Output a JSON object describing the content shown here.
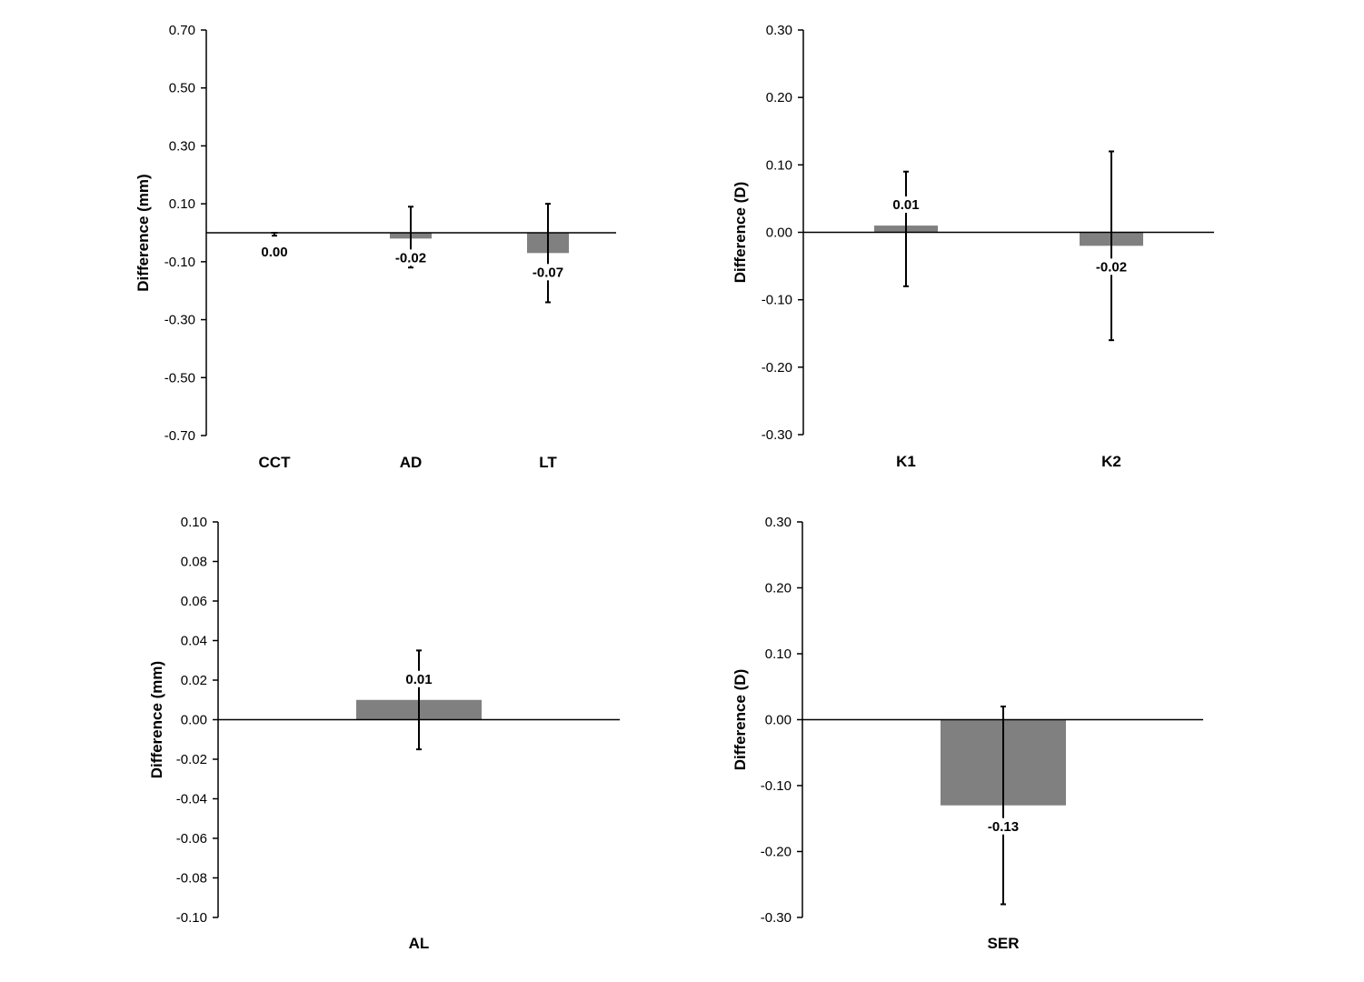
{
  "chart_data": [
    {
      "type": "bar",
      "categories": [
        "CCT",
        "AD",
        "LT"
      ],
      "values": [
        0.0,
        -0.02,
        -0.07
      ],
      "value_labels": [
        "0.00",
        "-0.02",
        "-0.07"
      ],
      "error_bars": [
        {
          "low": -0.01,
          "high": 0.0
        },
        {
          "low": -0.12,
          "high": 0.09
        },
        {
          "low": -0.24,
          "high": 0.1
        }
      ],
      "ylabel": "Difference (mm)",
      "ylim": [
        -0.7,
        0.7
      ],
      "yticks": [
        0.7,
        0.5,
        0.3,
        0.1,
        -0.1,
        -0.3,
        -0.5,
        -0.7
      ],
      "ytick_labels": [
        "0.70",
        "0.50",
        "0.30",
        "0.10",
        "-0.10",
        "-0.30",
        "-0.50",
        "-0.70"
      ],
      "bar_color": "#808080",
      "grid": false
    },
    {
      "type": "bar",
      "categories": [
        "K1",
        "K2"
      ],
      "values": [
        0.01,
        -0.02
      ],
      "value_labels": [
        "0.01",
        "-0.02"
      ],
      "error_bars": [
        {
          "low": -0.08,
          "high": 0.09
        },
        {
          "low": -0.16,
          "high": 0.12
        }
      ],
      "ylabel": "Difference (D)",
      "ylim": [
        -0.3,
        0.3
      ],
      "yticks": [
        0.3,
        0.2,
        0.1,
        0.0,
        -0.1,
        -0.2,
        -0.3
      ],
      "ytick_labels": [
        "0.30",
        "0.20",
        "0.10",
        "0.00",
        "-0.10",
        "-0.20",
        "-0.30"
      ],
      "bar_color": "#808080",
      "grid": false
    },
    {
      "type": "bar",
      "categories": [
        "AL"
      ],
      "values": [
        0.01
      ],
      "value_labels": [
        "0.01"
      ],
      "error_bars": [
        {
          "low": -0.015,
          "high": 0.035
        }
      ],
      "ylabel": "Difference (mm)",
      "ylim": [
        -0.1,
        0.1
      ],
      "yticks": [
        0.1,
        0.08,
        0.06,
        0.04,
        0.02,
        0.0,
        -0.02,
        -0.04,
        -0.06,
        -0.08,
        -0.1
      ],
      "ytick_labels": [
        "0.10",
        "0.08",
        "0.06",
        "0.04",
        "0.02",
        "0.00",
        "-0.02",
        "-0.04",
        "-0.06",
        "-0.08",
        "-0.10"
      ],
      "bar_color": "#808080",
      "grid": false
    },
    {
      "type": "bar",
      "categories": [
        "SER"
      ],
      "values": [
        -0.13
      ],
      "value_labels": [
        "-0.13"
      ],
      "error_bars": [
        {
          "low": -0.28,
          "high": 0.02
        }
      ],
      "ylabel": "Difference (D)",
      "ylim": [
        -0.3,
        0.3
      ],
      "yticks": [
        0.3,
        0.2,
        0.1,
        0.0,
        -0.1,
        -0.2,
        -0.3
      ],
      "ytick_labels": [
        "0.30",
        "0.20",
        "0.10",
        "0.00",
        "-0.10",
        "-0.20",
        "-0.30"
      ],
      "bar_color": "#808080",
      "grid": false
    }
  ]
}
